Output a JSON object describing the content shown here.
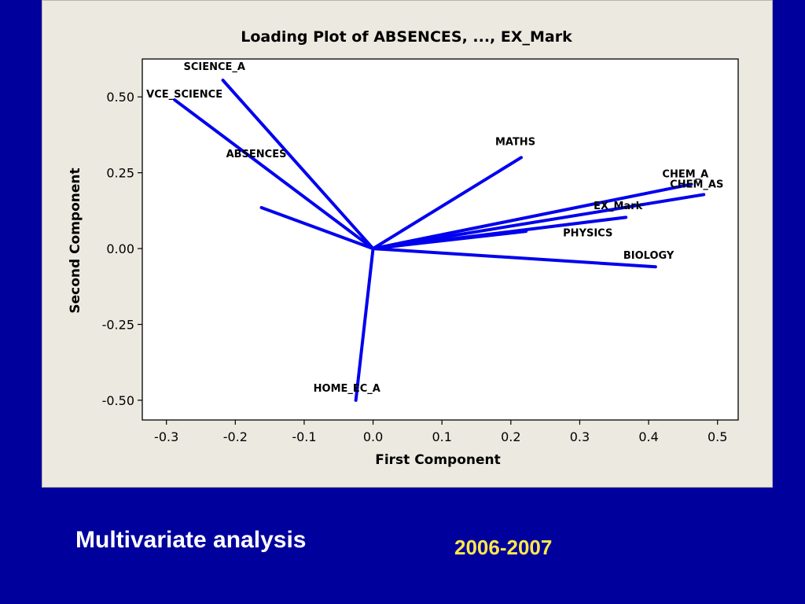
{
  "slide": {
    "title": "Multivariate analysis",
    "year": "2006-2007",
    "colors": {
      "background": "#00009c",
      "panel": "#ece9e0",
      "title_text": "#ffffff",
      "year_text": "#ffe84a",
      "loading_lines": "#0000ee"
    }
  },
  "chart_data": {
    "type": "line",
    "chart_kind": "loading plot",
    "title": "Loading Plot of ABSENCES, ..., EX_Mark",
    "xlabel": "First Component",
    "ylabel": "Second Component",
    "xlim": [
      -0.335,
      0.53
    ],
    "ylim": [
      -0.565,
      0.625
    ],
    "xticks": [
      "-0.3",
      "-0.2",
      "-0.1",
      "0.0",
      "0.1",
      "0.2",
      "0.3",
      "0.4",
      "0.5"
    ],
    "yticks": [
      "0.50",
      "0.25",
      "0.00",
      "-0.25",
      "-0.50"
    ],
    "grid": false,
    "origin": [
      0,
      0
    ],
    "series": [
      {
        "name": "SCIENCE_A",
        "x": -0.218,
        "y": 0.555
      },
      {
        "name": "VCE_SCIENCE",
        "x": -0.288,
        "y": 0.49
      },
      {
        "name": "ABSENCES",
        "x": -0.162,
        "y": 0.135
      },
      {
        "name": "MATHS",
        "x": 0.215,
        "y": 0.3
      },
      {
        "name": "CHEM_A",
        "x": 0.462,
        "y": 0.212
      },
      {
        "name": "CHEM_AS",
        "x": 0.48,
        "y": 0.178
      },
      {
        "name": "EX_Mark",
        "x": 0.222,
        "y": 0.057
      },
      {
        "name": "PHYSICS",
        "x": 0.367,
        "y": 0.103
      },
      {
        "name": "BIOLOGY",
        "x": 0.41,
        "y": -0.06
      },
      {
        "name": "HOME_EC_A",
        "x": -0.025,
        "y": -0.5
      }
    ]
  }
}
